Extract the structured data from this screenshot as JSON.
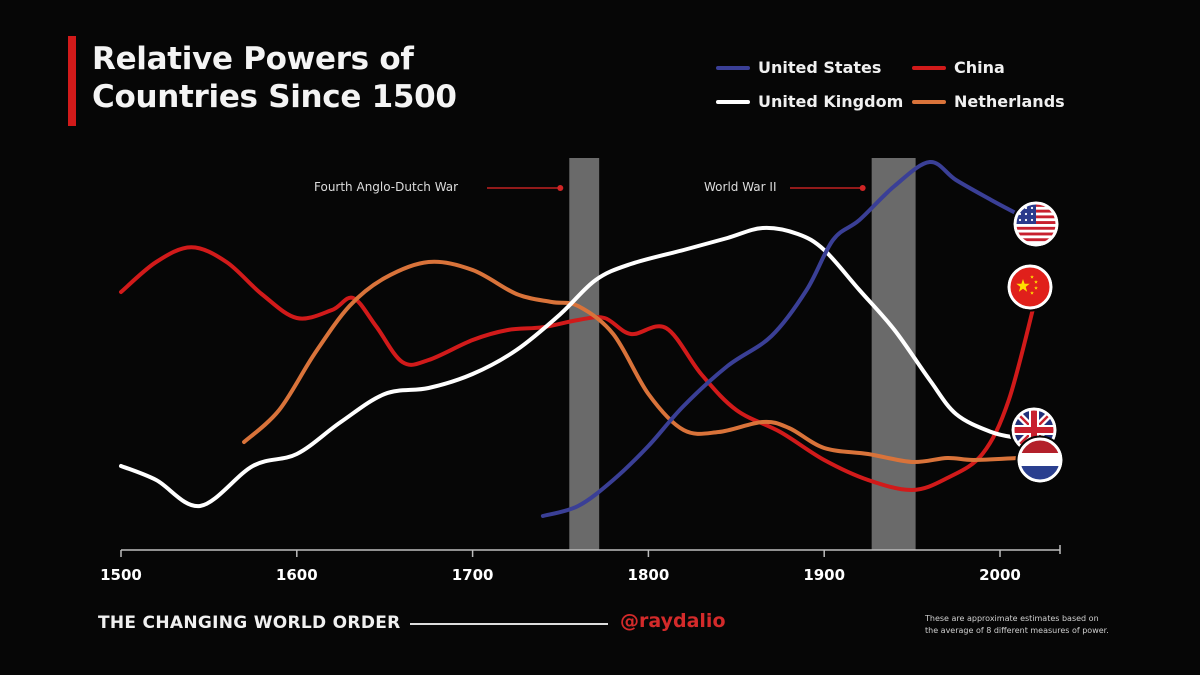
{
  "header": {
    "title_line1": "Relative Powers of",
    "title_line2": "Countries Since 1500"
  },
  "legend": [
    {
      "label": "United States",
      "color": "#3a3f96"
    },
    {
      "label": "China",
      "color": "#d11a1a"
    },
    {
      "label": "United Kingdom",
      "color": "#ffffff"
    },
    {
      "label": "Netherlands",
      "color": "#d9733a"
    }
  ],
  "footer": {
    "series_name": "THE CHANGING WORLD ORDER",
    "handle": "@raydalio",
    "note_line1": "These are approximate estimates based on",
    "note_line2": "the average of 8 different measures of power."
  },
  "flags": [
    {
      "country": "United States",
      "icon": "us-flag-icon"
    },
    {
      "country": "China",
      "icon": "china-flag-icon"
    },
    {
      "country": "United Kingdom",
      "icon": "uk-flag-icon"
    },
    {
      "country": "Netherlands",
      "icon": "netherlands-flag-icon"
    }
  ],
  "chart_data": {
    "type": "line",
    "title": "Relative Powers of Countries Since 1500",
    "xlabel": "",
    "ylabel": "",
    "xlim": [
      1500,
      2035
    ],
    "ylim": [
      0,
      1
    ],
    "x_ticks": [
      1500,
      1600,
      1700,
      1800,
      1900,
      2000
    ],
    "grid": false,
    "legend_position": "top-right",
    "annotations": [
      {
        "label": "Fourth Anglo-Dutch War",
        "start": 1755,
        "end": 1772
      },
      {
        "label": "World War II",
        "start": 1927,
        "end": 1952
      }
    ],
    "series": [
      {
        "name": "China",
        "color": "#d11a1a",
        "points": [
          [
            1500,
            0.645
          ],
          [
            1520,
            0.72
          ],
          [
            1540,
            0.757
          ],
          [
            1560,
            0.72
          ],
          [
            1580,
            0.64
          ],
          [
            1600,
            0.58
          ],
          [
            1620,
            0.6
          ],
          [
            1632,
            0.63
          ],
          [
            1645,
            0.56
          ],
          [
            1660,
            0.47
          ],
          [
            1675,
            0.475
          ],
          [
            1700,
            0.525
          ],
          [
            1720,
            0.55
          ],
          [
            1740,
            0.557
          ],
          [
            1760,
            0.575
          ],
          [
            1775,
            0.58
          ],
          [
            1790,
            0.54
          ],
          [
            1810,
            0.555
          ],
          [
            1830,
            0.44
          ],
          [
            1850,
            0.35
          ],
          [
            1875,
            0.295
          ],
          [
            1900,
            0.225
          ],
          [
            1925,
            0.175
          ],
          [
            1950,
            0.15
          ],
          [
            1970,
            0.18
          ],
          [
            1990,
            0.24
          ],
          [
            2005,
            0.375
          ],
          [
            2020,
            0.625
          ]
        ]
      },
      {
        "name": "Netherlands",
        "color": "#d9733a",
        "points": [
          [
            1570,
            0.27
          ],
          [
            1590,
            0.35
          ],
          [
            1610,
            0.49
          ],
          [
            1630,
            0.61
          ],
          [
            1650,
            0.68
          ],
          [
            1675,
            0.72
          ],
          [
            1700,
            0.7
          ],
          [
            1725,
            0.64
          ],
          [
            1745,
            0.62
          ],
          [
            1760,
            0.61
          ],
          [
            1780,
            0.54
          ],
          [
            1800,
            0.39
          ],
          [
            1820,
            0.3
          ],
          [
            1840,
            0.295
          ],
          [
            1865,
            0.32
          ],
          [
            1880,
            0.305
          ],
          [
            1900,
            0.255
          ],
          [
            1925,
            0.24
          ],
          [
            1950,
            0.22
          ],
          [
            1970,
            0.23
          ],
          [
            1985,
            0.225
          ],
          [
            2010,
            0.23
          ]
        ]
      },
      {
        "name": "United Kingdom",
        "color": "#ffffff",
        "points": [
          [
            1500,
            0.21
          ],
          [
            1520,
            0.175
          ],
          [
            1545,
            0.11
          ],
          [
            1575,
            0.21
          ],
          [
            1600,
            0.24
          ],
          [
            1625,
            0.32
          ],
          [
            1650,
            0.39
          ],
          [
            1675,
            0.405
          ],
          [
            1700,
            0.44
          ],
          [
            1725,
            0.5
          ],
          [
            1750,
            0.59
          ],
          [
            1770,
            0.675
          ],
          [
            1790,
            0.715
          ],
          [
            1820,
            0.75
          ],
          [
            1845,
            0.78
          ],
          [
            1865,
            0.805
          ],
          [
            1885,
            0.79
          ],
          [
            1900,
            0.75
          ],
          [
            1920,
            0.65
          ],
          [
            1940,
            0.55
          ],
          [
            1960,
            0.425
          ],
          [
            1975,
            0.34
          ],
          [
            1995,
            0.295
          ],
          [
            2010,
            0.28
          ]
        ]
      },
      {
        "name": "United States",
        "color": "#3a3f96",
        "points": [
          [
            1740,
            0.085
          ],
          [
            1760,
            0.11
          ],
          [
            1780,
            0.175
          ],
          [
            1800,
            0.26
          ],
          [
            1820,
            0.36
          ],
          [
            1845,
            0.46
          ],
          [
            1870,
            0.535
          ],
          [
            1890,
            0.65
          ],
          [
            1905,
            0.775
          ],
          [
            1920,
            0.825
          ],
          [
            1940,
            0.91
          ],
          [
            1960,
            0.97
          ],
          [
            1975,
            0.925
          ],
          [
            1995,
            0.875
          ],
          [
            2010,
            0.84
          ]
        ]
      }
    ]
  }
}
